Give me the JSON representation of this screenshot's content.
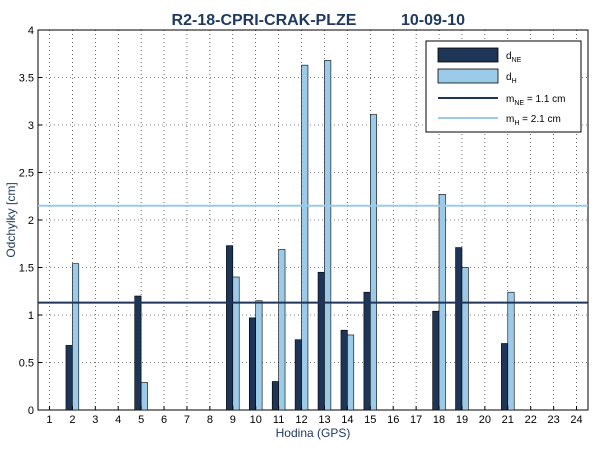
{
  "chart_data": {
    "type": "bar",
    "title_left": "R2-18-CPRI-CRAK-PLZE",
    "title_right": "10-09-10",
    "xlabel": "Hodina (GPS)",
    "ylabel": "Odchylky [cm]",
    "ylim": [
      0,
      4
    ],
    "xlim": [
      0.5,
      24.5
    ],
    "grid": true,
    "legend_position": "top-right",
    "x": [
      1,
      2,
      3,
      4,
      5,
      6,
      7,
      8,
      9,
      10,
      11,
      12,
      13,
      14,
      15,
      16,
      17,
      18,
      19,
      20,
      21,
      22,
      23,
      24
    ],
    "y_ticks": [
      "0",
      "0.5",
      "1",
      "1.5",
      "2",
      "2.5",
      "3",
      "3.5",
      "4"
    ],
    "series": [
      {
        "name": "d",
        "name_sub": "NE",
        "color": "#1f3558",
        "values": [
          null,
          0.68,
          null,
          null,
          1.2,
          null,
          null,
          null,
          1.73,
          0.97,
          0.3,
          0.74,
          1.45,
          0.84,
          1.24,
          null,
          null,
          1.04,
          1.71,
          null,
          0.7,
          null,
          null,
          null
        ]
      },
      {
        "name": "d",
        "name_sub": "H",
        "color": "#9ccbe9",
        "values": [
          null,
          1.54,
          null,
          null,
          0.29,
          null,
          null,
          null,
          1.4,
          1.15,
          1.69,
          3.63,
          3.68,
          0.79,
          3.11,
          null,
          null,
          2.27,
          1.5,
          null,
          1.24,
          null,
          null,
          null
        ]
      }
    ],
    "reference_lines": [
      {
        "name": "m",
        "name_sub": "NE",
        "suffix": " = 1.1 cm",
        "value": 1.13,
        "color": "#1f3558"
      },
      {
        "name": "m",
        "name_sub": "H",
        "suffix": " = 2.1 cm",
        "value": 2.15,
        "color": "#9ccbe9"
      }
    ]
  }
}
